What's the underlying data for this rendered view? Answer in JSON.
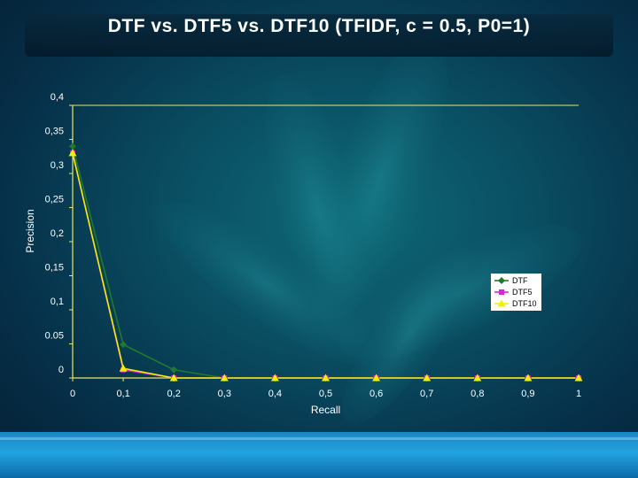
{
  "slide": {
    "title": "DTF vs. DTF5 vs. DTF10 (TFIDF, c = 0.5, P0=1)"
  },
  "colors": {
    "background": "#0a4f63",
    "bottom_bar": "#22a3e0",
    "axis": "#e8e860",
    "tick_text": "#ffffff"
  },
  "chart_data": {
    "type": "line",
    "xlabel": "Recall",
    "ylabel": "Precision",
    "x": [
      0,
      0.1,
      0.2,
      0.3,
      0.4,
      0.5,
      0.6,
      0.7,
      0.8,
      0.9,
      1
    ],
    "x_tick_labels": [
      "0",
      "0,1",
      "0,2",
      "0,3",
      "0,4",
      "0,5",
      "0,6",
      "0,7",
      "0,8",
      "0,9",
      "1"
    ],
    "y_tick_values": [
      0,
      0.05,
      0.1,
      0.15,
      0.2,
      0.25,
      0.3,
      0.35,
      0.4
    ],
    "y_tick_labels": [
      "0",
      "0.05",
      "0,1",
      "0,15",
      "0,2",
      "0,25",
      "0,3",
      "0,35",
      "0,4"
    ],
    "xlim": [
      0,
      1
    ],
    "ylim": [
      0,
      0.4
    ],
    "grid": "y-major",
    "legend_position": "right",
    "series": [
      {
        "name": "DTF",
        "color": "#1f7a2e",
        "marker": "diamond",
        "values": [
          0.34,
          0.049,
          0.012,
          0,
          0,
          0,
          0,
          0,
          0,
          0,
          0
        ]
      },
      {
        "name": "DTF5",
        "color": "#e020e0",
        "marker": "square",
        "values": [
          0.33,
          0.012,
          0,
          0,
          0,
          0,
          0,
          0,
          0,
          0,
          0
        ]
      },
      {
        "name": "DTF10",
        "color": "#f0f000",
        "marker": "triangle",
        "values": [
          0.33,
          0.014,
          0,
          0,
          0,
          0,
          0,
          0,
          0,
          0,
          0
        ]
      }
    ]
  }
}
